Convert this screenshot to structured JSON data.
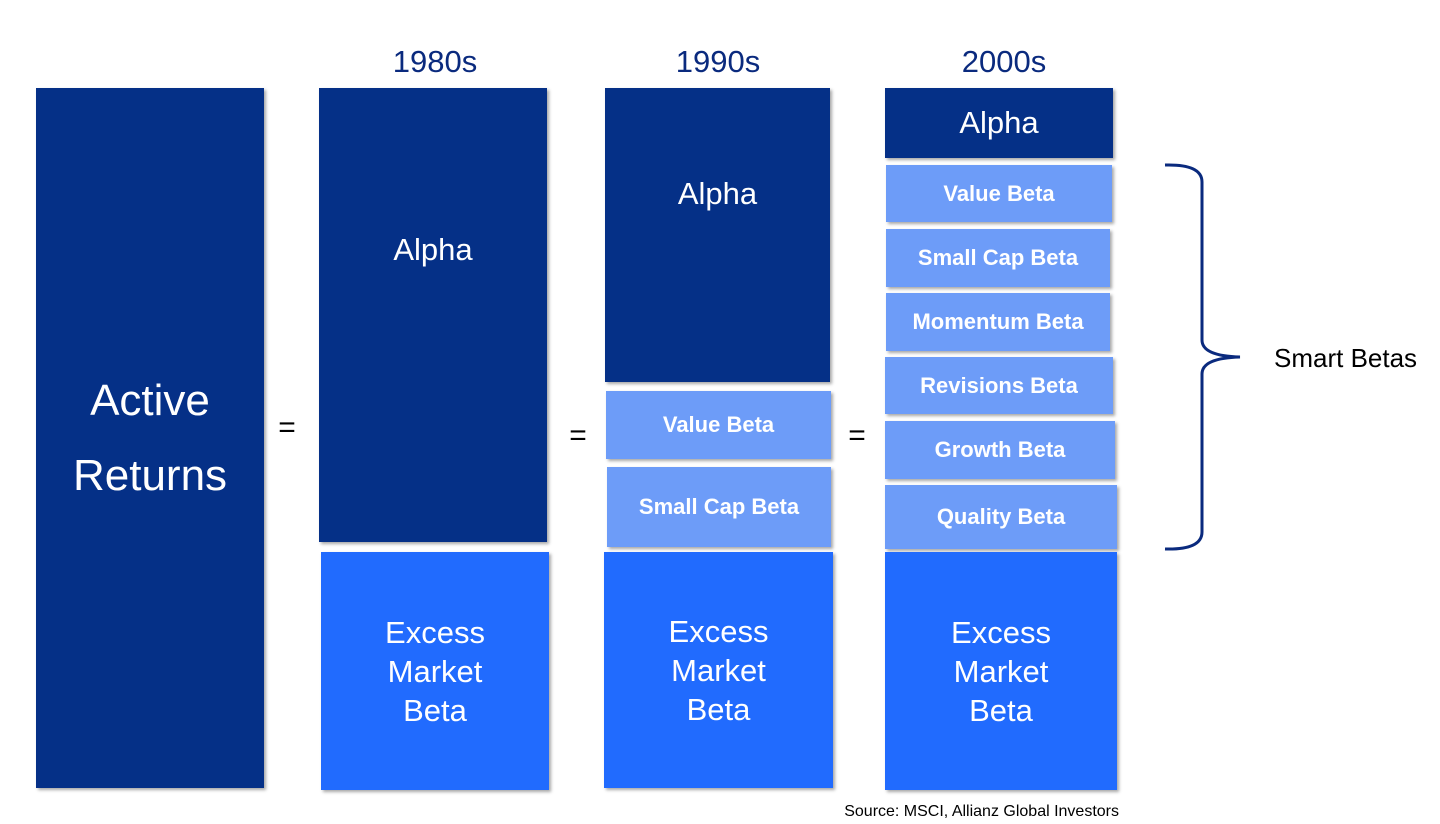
{
  "left": {
    "label": "Active Returns"
  },
  "equals": [
    "=",
    "=",
    "="
  ],
  "columns": [
    {
      "header": "1980s",
      "blocks": [
        {
          "label": "Alpha"
        },
        {
          "label": "Excess Market Beta"
        }
      ]
    },
    {
      "header": "1990s",
      "blocks": [
        {
          "label": "Alpha"
        },
        {
          "label": "Value Beta"
        },
        {
          "label": "Small Cap Beta"
        },
        {
          "label": "Excess Market Beta"
        }
      ]
    },
    {
      "header": "2000s",
      "blocks": [
        {
          "label": "Alpha"
        },
        {
          "label": "Value Beta"
        },
        {
          "label": "Small Cap Beta"
        },
        {
          "label": "Momentum Beta"
        },
        {
          "label": "Revisions Beta"
        },
        {
          "label": "Growth Beta"
        },
        {
          "label": "Quality Beta"
        },
        {
          "label": "Excess Market Beta"
        }
      ]
    }
  ],
  "brace_label": "Smart Betas",
  "source": "Source: MSCI, Allianz Global Investors"
}
